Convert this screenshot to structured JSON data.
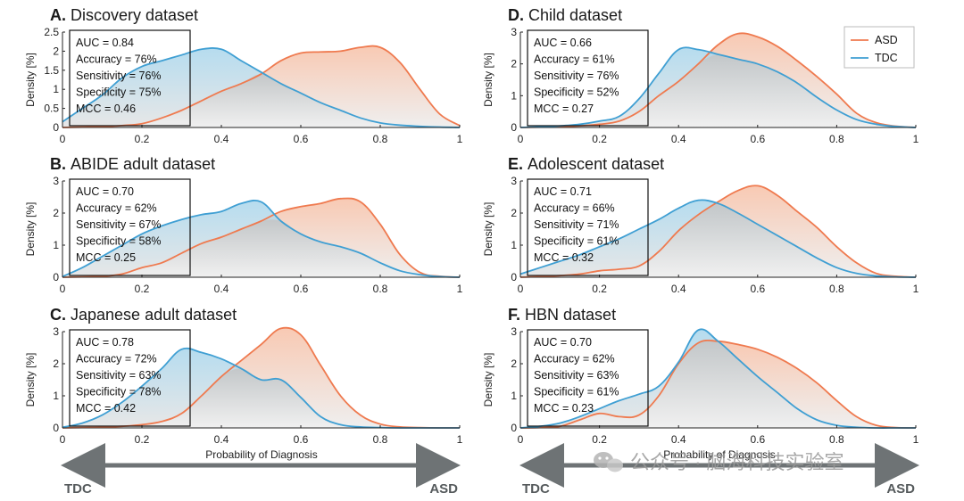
{
  "chart_data": {
    "colors": {
      "asd": "#ef7a4f",
      "tdc": "#3f9fd3",
      "asd_fill": "#f9cdb8",
      "tdc_fill": "#b9dff0",
      "gray_fill": "#d9d9d9"
    },
    "legend": {
      "asd": "ASD",
      "tdc": "TDC"
    },
    "xlabel": "Probability of Diagnosis",
    "ylabel": "Density [%]",
    "x_ticks": [
      "0",
      "0.2",
      "0.4",
      "0.6",
      "0.8",
      "1"
    ],
    "x_tick_values": [
      0,
      0.2,
      0.4,
      0.6,
      0.8,
      1
    ],
    "footer": {
      "left": "TDC",
      "right": "ASD"
    },
    "watermark": "公众号 · 脑海科技实验室",
    "x_grid": [
      0,
      0.05,
      0.1,
      0.15,
      0.2,
      0.25,
      0.3,
      0.35,
      0.4,
      0.45,
      0.5,
      0.55,
      0.6,
      0.65,
      0.7,
      0.75,
      0.8,
      0.85,
      0.9,
      0.95,
      1
    ],
    "panels": [
      {
        "id": "A",
        "letter": "A.",
        "name": "Discovery dataset",
        "type": "area",
        "ylim": [
          0,
          2.5
        ],
        "y_ticks": [
          0,
          0.5,
          1,
          1.5,
          2,
          2.5
        ],
        "y_tick_labels": [
          "0",
          "0.5",
          "1",
          "1.5",
          "2",
          "2.5"
        ],
        "stats": [
          "AUC = 0.84",
          "Accuracy = 76%",
          "Sensitivity = 76%",
          "Specificity = 75%",
          "MCC = 0.46"
        ],
        "series": [
          {
            "name": "TDC",
            "values": [
              0.15,
              0.5,
              0.85,
              1.3,
              1.6,
              1.75,
              1.9,
              2.05,
              2.05,
              1.75,
              1.45,
              1.15,
              0.9,
              0.65,
              0.45,
              0.25,
              0.12,
              0.06,
              0.03,
              0.01,
              0
            ]
          },
          {
            "name": "ASD",
            "values": [
              0,
              0.01,
              0.02,
              0.05,
              0.1,
              0.25,
              0.45,
              0.7,
              0.95,
              1.15,
              1.4,
              1.75,
              1.95,
              1.98,
              2.0,
              2.1,
              2.1,
              1.7,
              1.0,
              0.35,
              0.05
            ]
          }
        ],
        "show_legend": false
      },
      {
        "id": "D",
        "letter": "D.",
        "name": "Child dataset",
        "type": "area",
        "ylim": [
          0,
          3
        ],
        "y_ticks": [
          0,
          1,
          2,
          3
        ],
        "y_tick_labels": [
          "0",
          "1",
          "2",
          "3"
        ],
        "stats": [
          "AUC = 0.66",
          "Accuracy = 61%",
          "Sensitivity = 76%",
          "Specificity = 52%",
          "MCC = 0.27"
        ],
        "series": [
          {
            "name": "TDC",
            "values": [
              0,
              0.02,
              0.05,
              0.1,
              0.2,
              0.35,
              0.9,
              1.7,
              2.45,
              2.45,
              2.3,
              2.15,
              2.0,
              1.75,
              1.4,
              0.95,
              0.55,
              0.25,
              0.1,
              0.03,
              0
            ]
          },
          {
            "name": "ASD",
            "values": [
              0,
              0.01,
              0.02,
              0.05,
              0.1,
              0.2,
              0.5,
              1.0,
              1.45,
              2.0,
              2.6,
              2.95,
              2.85,
              2.55,
              2.1,
              1.6,
              1.05,
              0.45,
              0.15,
              0.04,
              0
            ]
          }
        ],
        "show_legend": true
      },
      {
        "id": "B",
        "letter": "B.",
        "name": "ABIDE adult dataset",
        "type": "area",
        "ylim": [
          0,
          3
        ],
        "y_ticks": [
          0,
          1,
          2,
          3
        ],
        "y_tick_labels": [
          "0",
          "1",
          "2",
          "3"
        ],
        "stats": [
          "AUC = 0.70",
          "Accuracy = 62%",
          "Sensitivity = 67%",
          "Specificity = 58%",
          "MCC = 0.25"
        ],
        "series": [
          {
            "name": "TDC",
            "values": [
              0.02,
              0.3,
              0.65,
              1.0,
              1.35,
              1.6,
              1.8,
              1.95,
              2.05,
              2.3,
              2.35,
              1.75,
              1.35,
              1.1,
              0.95,
              0.75,
              0.45,
              0.2,
              0.08,
              0.02,
              0
            ]
          },
          {
            "name": "ASD",
            "values": [
              0,
              0.01,
              0.03,
              0.1,
              0.3,
              0.45,
              0.75,
              1.05,
              1.25,
              1.5,
              1.75,
              2.05,
              2.2,
              2.3,
              2.45,
              2.35,
              1.65,
              0.7,
              0.15,
              0.03,
              0
            ]
          }
        ],
        "show_legend": false
      },
      {
        "id": "E",
        "letter": "E.",
        "name": "Adolescent dataset",
        "type": "area",
        "ylim": [
          0,
          3
        ],
        "y_ticks": [
          0,
          1,
          2,
          3
        ],
        "y_tick_labels": [
          "0",
          "1",
          "2",
          "3"
        ],
        "stats": [
          "AUC = 0.71",
          "Accuracy = 66%",
          "Sensitivity = 71%",
          "Specificity = 61%",
          "MCC = 0.32"
        ],
        "series": [
          {
            "name": "TDC",
            "values": [
              0.1,
              0.3,
              0.5,
              0.7,
              0.95,
              1.2,
              1.5,
              1.8,
              2.15,
              2.4,
              2.3,
              2.0,
              1.65,
              1.3,
              0.95,
              0.6,
              0.3,
              0.12,
              0.04,
              0.01,
              0
            ]
          },
          {
            "name": "ASD",
            "values": [
              0,
              0.02,
              0.05,
              0.1,
              0.2,
              0.25,
              0.35,
              0.8,
              1.45,
              1.95,
              2.35,
              2.7,
              2.85,
              2.55,
              2.05,
              1.55,
              0.95,
              0.45,
              0.12,
              0.03,
              0
            ]
          }
        ],
        "show_legend": false
      },
      {
        "id": "C",
        "letter": "C.",
        "name": "Japanese adult dataset",
        "type": "area",
        "ylim": [
          0,
          3
        ],
        "y_ticks": [
          0,
          1,
          2,
          3
        ],
        "y_tick_labels": [
          "0",
          "1",
          "2",
          "3"
        ],
        "stats": [
          "AUC = 0.78",
          "Accuracy = 72%",
          "Sensitivity = 63%",
          "Specificity = 78%",
          "MCC = 0.42"
        ],
        "series": [
          {
            "name": "TDC",
            "values": [
              0.02,
              0.15,
              0.4,
              0.8,
              1.3,
              1.85,
              2.45,
              2.35,
              2.15,
              1.85,
              1.5,
              1.5,
              0.95,
              0.35,
              0.1,
              0.03,
              0.01,
              0,
              0,
              0,
              0
            ]
          },
          {
            "name": "ASD",
            "values": [
              0,
              0.01,
              0.02,
              0.05,
              0.1,
              0.2,
              0.45,
              1.0,
              1.6,
              2.1,
              2.6,
              3.1,
              2.9,
              1.95,
              1.0,
              0.4,
              0.12,
              0.03,
              0.01,
              0,
              0
            ]
          }
        ],
        "show_legend": false
      },
      {
        "id": "F",
        "letter": "F.",
        "name": "HBN dataset",
        "type": "area",
        "ylim": [
          0,
          3
        ],
        "y_ticks": [
          0,
          1,
          2,
          3
        ],
        "y_tick_labels": [
          "0",
          "1",
          "2",
          "3"
        ],
        "stats": [
          "AUC = 0.70",
          "Accuracy = 62%",
          "Sensitivity = 63%",
          "Specificity = 61%",
          "MCC = 0.23"
        ],
        "series": [
          {
            "name": "TDC",
            "values": [
              0,
              0.05,
              0.15,
              0.35,
              0.6,
              0.85,
              1.05,
              1.3,
              2.05,
              3.05,
              2.7,
              2.15,
              1.6,
              1.1,
              0.6,
              0.25,
              0.08,
              0.02,
              0,
              0,
              0
            ]
          },
          {
            "name": "ASD",
            "values": [
              0,
              0.01,
              0.05,
              0.25,
              0.45,
              0.35,
              0.4,
              1.0,
              2.0,
              2.65,
              2.7,
              2.6,
              2.45,
              2.2,
              1.85,
              1.4,
              0.85,
              0.35,
              0.08,
              0.01,
              0
            ]
          }
        ],
        "show_legend": false
      }
    ]
  }
}
